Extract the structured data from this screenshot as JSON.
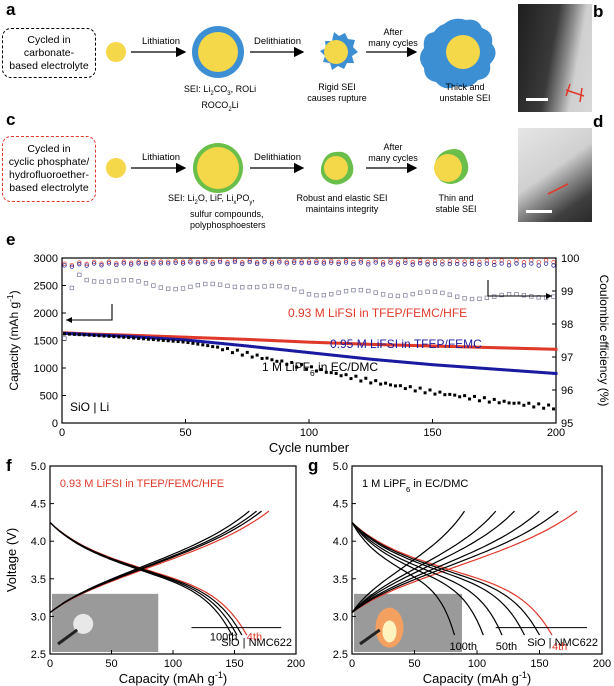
{
  "panel_labels": {
    "a": "a",
    "b": "b",
    "c": "c",
    "d": "d",
    "e": "e",
    "f": "f",
    "g": "g"
  },
  "schematic_a": {
    "box_text_1": "Cycled in",
    "box_text_2": "carbonate-",
    "box_text_3": "based electrolyte",
    "arrow1": "Lithiation",
    "arrow2": "Delithiation",
    "arrow3_1": "After",
    "arrow3_2": "many cycles",
    "sei_1": "SEI: Li",
    "sei_2": "2",
    "sei_3": "CO",
    "sei_4": "3",
    "sei_5": ", ROLi",
    "sei_6": "ROCO",
    "sei_7": "2",
    "sei_8": "Li",
    "rigid_1": "Rigid SEI",
    "rigid_2": "causes rupture",
    "thick_1": "Thick and",
    "thick_2": "unstable SEI"
  },
  "schematic_c": {
    "box_text_1": "Cycled in",
    "box_text_2": "cyclic phosphate/",
    "box_text_3": "hydrofluoroether-",
    "box_text_4": "based electrolyte",
    "arrow1": "Lithiation",
    "arrow2": "Delithiation",
    "arrow3_1": "After",
    "arrow3_2": "many cycles",
    "sei_1": "SEI: Li",
    "sei_2": "2",
    "sei_3": "O, LiF, Li",
    "sei_4": "x",
    "sei_5": "PO",
    "sei_6": "y",
    "sei_7": ",",
    "sei_l2": "sulfur compounds,",
    "sei_l3": "polyphosphoesters",
    "robust_1": "Robust and elastic SEI",
    "robust_2": "maintains integrity",
    "thin_1": "Thin and",
    "thin_2": "stable SEI"
  },
  "colors": {
    "blue": "#3d8fd4",
    "green": "#6abf4b",
    "yellow": "#f5d74a",
    "red": "#e0392a",
    "navy": "#1a1aa0",
    "black": "#000000"
  },
  "chart_data": [
    {
      "panel": "e",
      "type": "scatter",
      "xlabel": "Cycle number",
      "ylabel": "Capacity (mAh g",
      "ylabel_sup": "-1",
      "ylabel_end": ")",
      "y2label": "Coulombic efficiency (%)",
      "xlim": [
        0,
        200
      ],
      "ylim": [
        0,
        3000
      ],
      "y2lim": [
        95,
        100
      ],
      "xticks": [
        "0",
        "50",
        "100",
        "150",
        "200"
      ],
      "yticks": [
        "0",
        "500",
        "1000",
        "1500",
        "2000",
        "2500",
        "3000"
      ],
      "y2ticks": [
        "95",
        "96",
        "97",
        "98",
        "99",
        "100"
      ],
      "inset_label": "SiO | Li",
      "series": [
        {
          "name": "0.93 M LiFSI in TFEP/FEMC/HFE",
          "color": "#e0392a",
          "capacity": [
            [
              1,
              1640
            ],
            [
              10,
              1620
            ],
            [
              25,
              1600
            ],
            [
              50,
              1560
            ],
            [
              75,
              1520
            ],
            [
              100,
              1470
            ],
            [
              125,
              1430
            ],
            [
              150,
              1400
            ],
            [
              175,
              1370
            ],
            [
              200,
              1340
            ]
          ],
          "ce": [
            [
              1,
              99.8
            ],
            [
              10,
              99.85
            ],
            [
              50,
              99.9
            ],
            [
              100,
              99.9
            ],
            [
              150,
              99.9
            ],
            [
              200,
              99.9
            ]
          ]
        },
        {
          "name": "0.95 M LiFSI in TFEP/FEMC",
          "color": "#1a1aa0",
          "capacity": [
            [
              1,
              1630
            ],
            [
              10,
              1610
            ],
            [
              25,
              1580
            ],
            [
              50,
              1510
            ],
            [
              75,
              1400
            ],
            [
              100,
              1280
            ],
            [
              125,
              1160
            ],
            [
              150,
              1060
            ],
            [
              175,
              980
            ],
            [
              200,
              900
            ]
          ],
          "ce": [
            [
              1,
              99.75
            ],
            [
              10,
              99.8
            ],
            [
              50,
              99.85
            ],
            [
              100,
              99.85
            ],
            [
              150,
              99.82
            ],
            [
              200,
              99.8
            ]
          ]
        },
        {
          "name": "1 M LiPF",
          "name_sub": "6",
          "name_end": " in EC/DMC",
          "color": "#000000",
          "capacity": [
            [
              1,
              1620
            ],
            [
              10,
              1600
            ],
            [
              25,
              1560
            ],
            [
              50,
              1470
            ],
            [
              60,
              1400
            ],
            [
              75,
              1250
            ],
            [
              100,
              1000
            ],
            [
              125,
              760
            ],
            [
              150,
              560
            ],
            [
              175,
              400
            ],
            [
              200,
              280
            ]
          ],
          "ce": [
            [
              1,
              97.5
            ],
            [
              5,
              99.6
            ],
            [
              10,
              99.4
            ],
            [
              20,
              99.3
            ],
            [
              50,
              99.1
            ],
            [
              75,
              99.2
            ],
            [
              100,
              98.95
            ],
            [
              125,
              98.95
            ],
            [
              150,
              98.9
            ],
            [
              175,
              98.8
            ],
            [
              200,
              98.9
            ]
          ]
        }
      ]
    },
    {
      "panel": "f",
      "type": "line",
      "xlabel": "Capacity (mAh g",
      "xlabel_sup": "-1",
      "xlabel_end": ")",
      "ylabel": "Voltage (V)",
      "xlim": [
        0,
        200
      ],
      "ylim": [
        2.5,
        5.0
      ],
      "xticks": [
        "0",
        "50",
        "100",
        "150",
        "200"
      ],
      "yticks": [
        "2.5",
        "3.0",
        "3.5",
        "4.0",
        "4.5",
        "5.0"
      ],
      "legend": "0.93 M LiFSI in TFEP/FEMC/HFE",
      "annot_100": "100th",
      "annot_4": "4th",
      "cell": "SiO | NMC622",
      "series": [
        {
          "name": "4th",
          "color": "#e0392a",
          "charge_cap": 178,
          "discharge_cap": 160
        },
        {
          "name": "mid1",
          "color": "#000000",
          "charge_cap": 172,
          "discharge_cap": 156
        },
        {
          "name": "mid2",
          "color": "#000000",
          "charge_cap": 168,
          "discharge_cap": 152
        },
        {
          "name": "100th",
          "color": "#000000",
          "charge_cap": 162,
          "discharge_cap": 148
        }
      ]
    },
    {
      "panel": "g",
      "type": "line",
      "xlabel": "Capacity (mAh g",
      "xlabel_sup": "-1",
      "xlabel_end": ")",
      "ylabel": "",
      "xlim": [
        0,
        200
      ],
      "ylim": [
        2.5,
        5.0
      ],
      "xticks": [
        "0",
        "50",
        "100",
        "150",
        "200"
      ],
      "yticks": [
        "2.5",
        "3.0",
        "3.5",
        "4.0",
        "4.5",
        "5.0"
      ],
      "legend": "1 M LiPF",
      "legend_sub": "6",
      "legend_end": " in EC/DMC",
      "annot_100": "100th",
      "annot_50": "50th",
      "annot_4": "4th",
      "cell": "SiO | NMC622",
      "series": [
        {
          "name": "4th",
          "color": "#e0392a",
          "charge_cap": 180,
          "discharge_cap": 160
        },
        {
          "name": "c2",
          "color": "#000000",
          "charge_cap": 165,
          "discharge_cap": 150
        },
        {
          "name": "c3",
          "color": "#000000",
          "charge_cap": 150,
          "discharge_cap": 138
        },
        {
          "name": "50th",
          "color": "#000000",
          "charge_cap": 130,
          "discharge_cap": 120
        },
        {
          "name": "c5",
          "color": "#000000",
          "charge_cap": 115,
          "discharge_cap": 105
        },
        {
          "name": "100th",
          "color": "#000000",
          "charge_cap": 90,
          "discharge_cap": 82
        }
      ]
    }
  ]
}
